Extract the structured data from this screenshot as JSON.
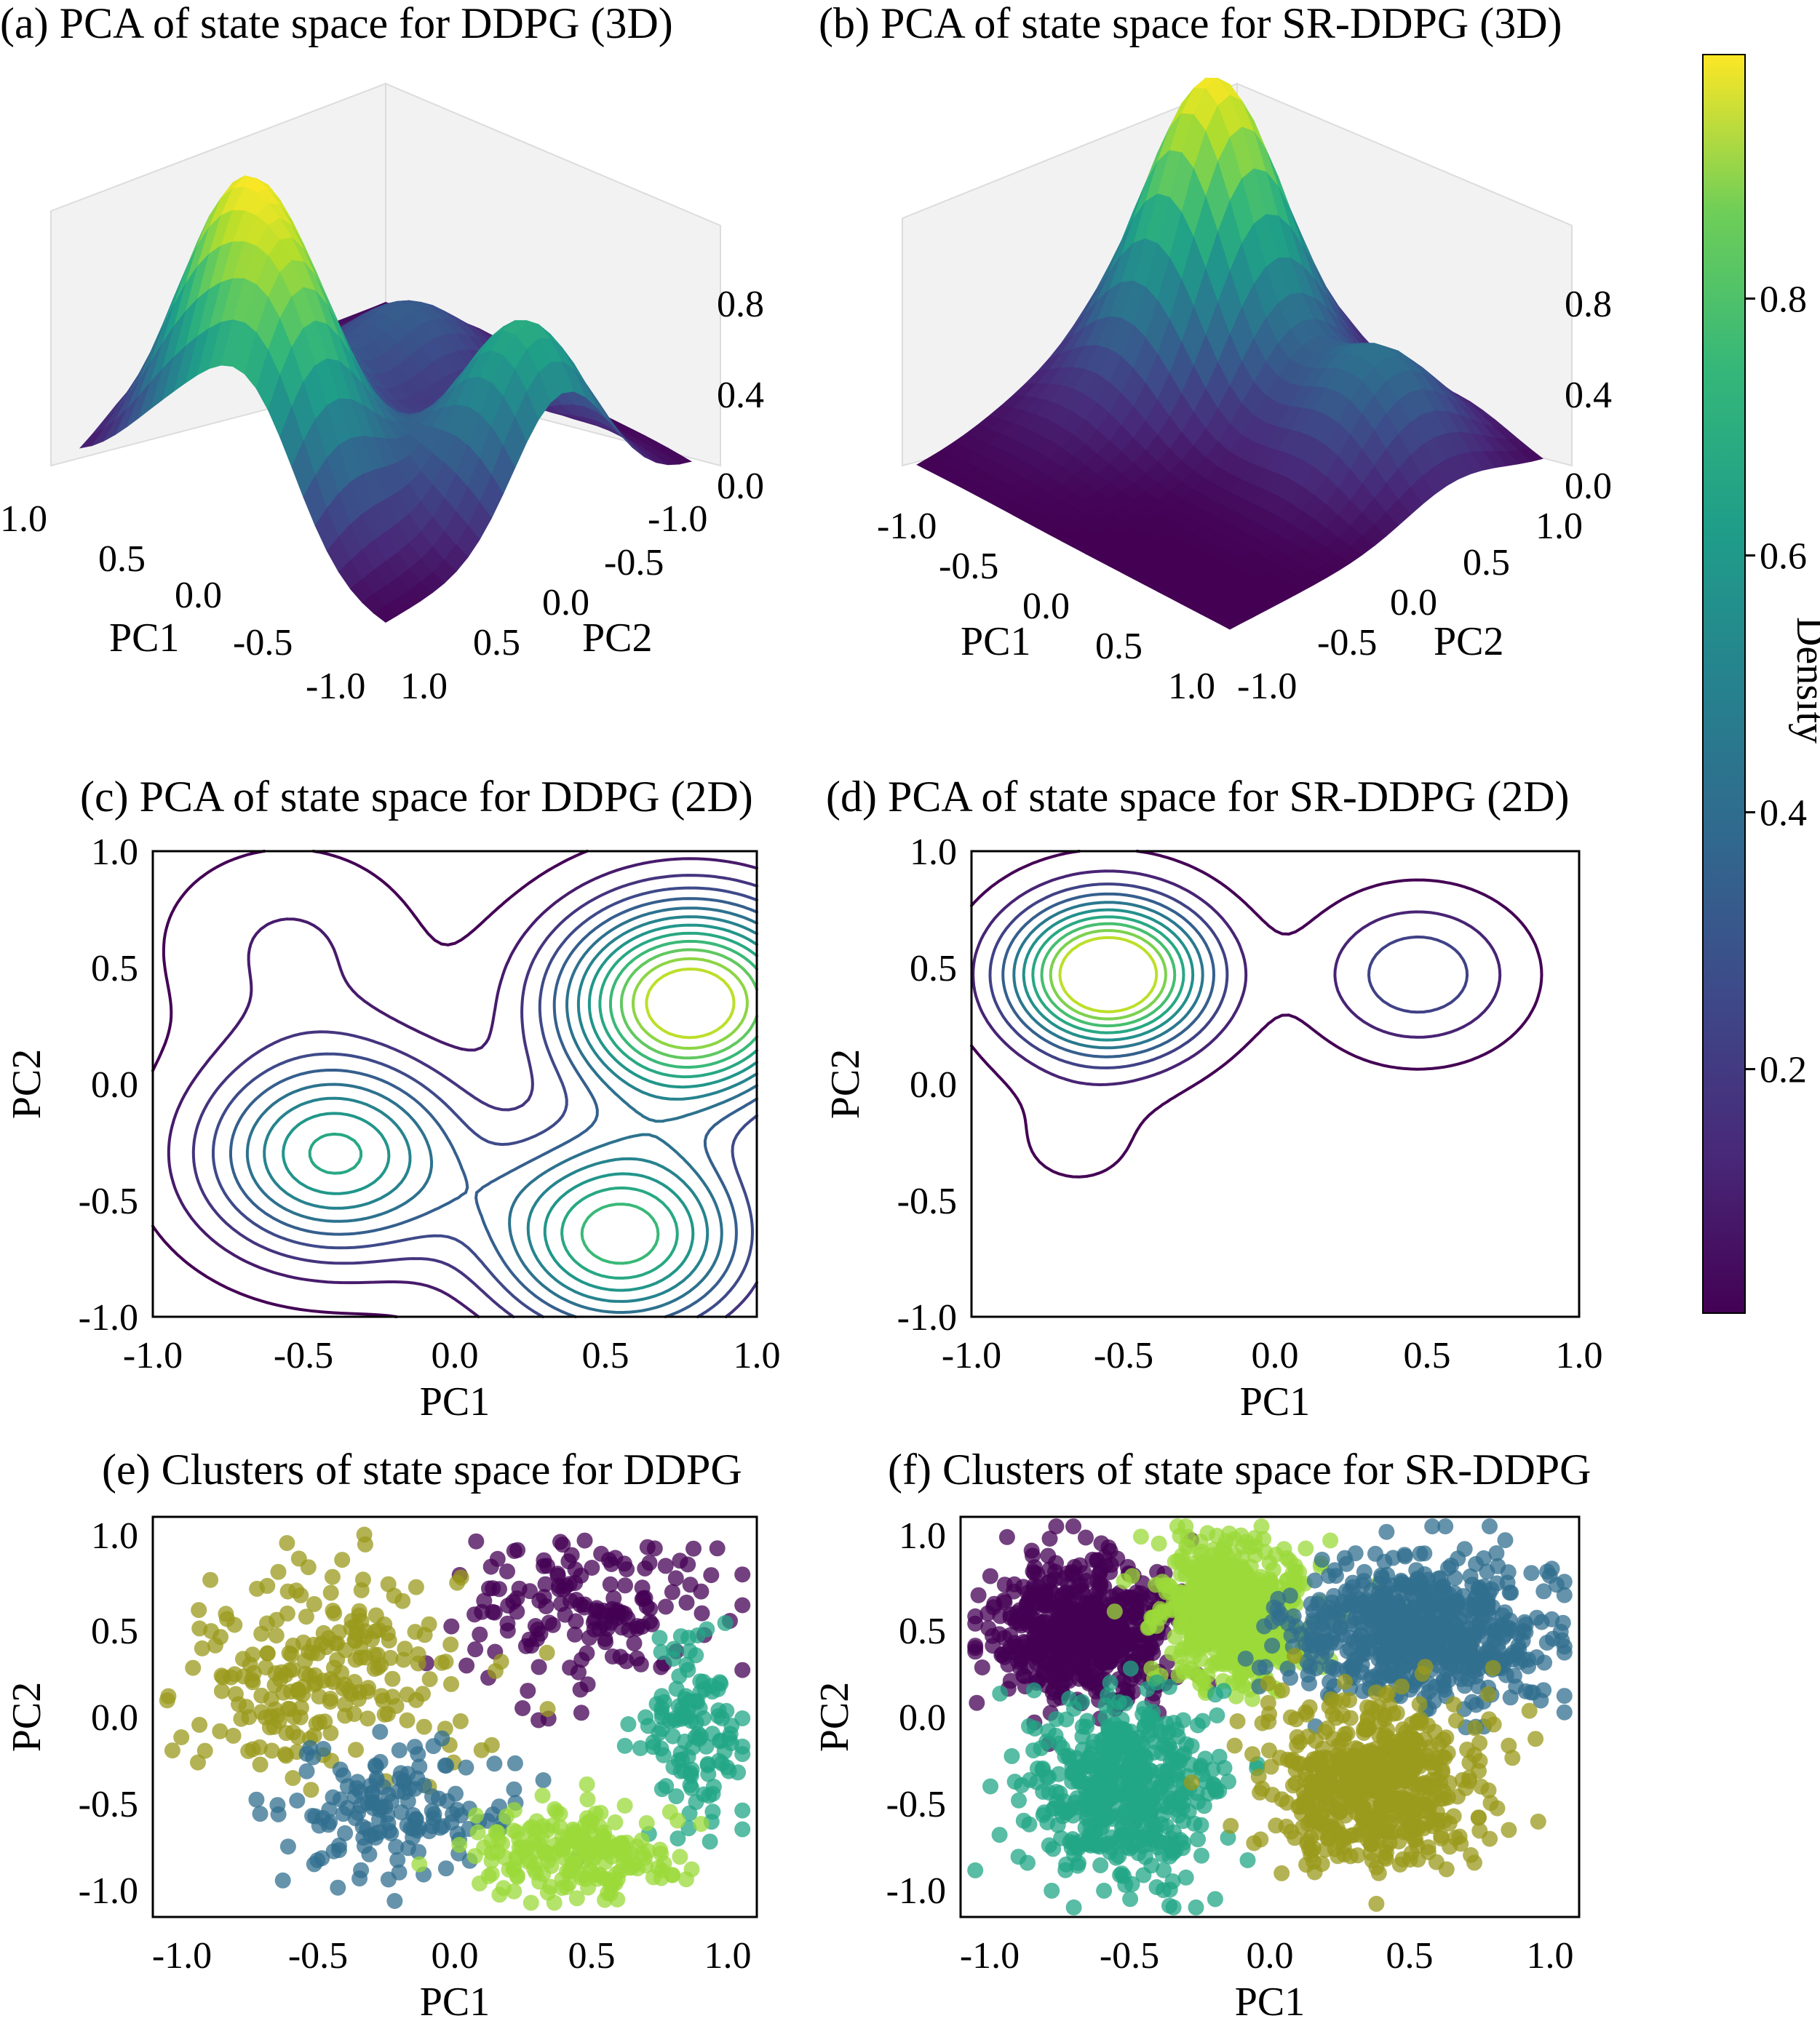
{
  "colorbar": {
    "label": "Density",
    "ticks": [
      "0.2",
      "0.4",
      "0.6",
      "0.8"
    ],
    "tick_values": [
      0.2,
      0.4,
      0.6,
      0.8
    ],
    "range": [
      0.01,
      0.99
    ]
  },
  "chart_data": [
    {
      "id": "a",
      "type": "surface",
      "title": "(a) PCA of state space for DDPG (3D)",
      "xlabel": "PC1",
      "ylabel": "PC2",
      "xticks": [
        "1.0",
        "0.5",
        "0.0",
        "-0.5",
        "-1.0"
      ],
      "yticks": [
        "-1.0",
        "-0.5",
        "0.0",
        "0.5",
        "1.0"
      ],
      "zticks": [
        "0.0",
        "0.4",
        "0.8"
      ],
      "xlim": [
        -1,
        1
      ],
      "ylim": [
        -1,
        1
      ],
      "zlim": [
        0,
        1
      ],
      "peaks": [
        {
          "x": -0.45,
          "y": -0.5,
          "height": 1.0
        },
        {
          "x": 0.1,
          "y": -0.75,
          "height": 0.85
        },
        {
          "x": 0.75,
          "y": 0.15,
          "height": 0.75
        },
        {
          "x": -0.35,
          "y": 0.5,
          "height": 0.35
        }
      ]
    },
    {
      "id": "b",
      "type": "surface",
      "title": "(b) PCA of state space for SR-DDPG (3D)",
      "xlabel": "PC1",
      "ylabel": "PC2",
      "xticks": [
        "-1.0",
        "-0.5",
        "0.0",
        "0.5",
        "1.0"
      ],
      "yticks": [
        "1.0",
        "0.5",
        "0.0",
        "-0.5",
        "-1.0"
      ],
      "zticks": [
        "0.0",
        "0.4",
        "0.8"
      ],
      "xlim": [
        -1,
        1
      ],
      "ylim": [
        -1,
        1
      ],
      "zlim": [
        0,
        1
      ],
      "peaks": [
        {
          "x": -0.55,
          "y": 0.45,
          "height": 1.0
        },
        {
          "x": 0.48,
          "y": 0.45,
          "height": 0.38
        },
        {
          "x": -0.7,
          "y": -0.2,
          "height": 0.1
        }
      ]
    },
    {
      "id": "c",
      "type": "contour",
      "title": "(c) PCA of state space for DDPG (2D)",
      "xlabel": "PC1",
      "ylabel": "PC2",
      "xticks": [
        "-1.0",
        "-0.5",
        "0.0",
        "0.5",
        "1.0"
      ],
      "yticks": [
        "1.0",
        "0.5",
        "0.0",
        "-0.5",
        "-1.0"
      ],
      "xlim": [
        -1,
        1
      ],
      "ylim": [
        -1,
        1
      ],
      "levels": [
        0.05,
        0.12,
        0.19,
        0.26,
        0.33,
        0.4,
        0.47,
        0.54,
        0.61,
        0.68,
        0.75,
        0.82,
        0.89
      ],
      "peaks": [
        {
          "x": 0.78,
          "y": 0.35,
          "height": 0.95
        },
        {
          "x": 0.55,
          "y": -0.65,
          "height": 0.7
        },
        {
          "x": -0.4,
          "y": -0.3,
          "height": 0.6
        },
        {
          "x": -0.55,
          "y": 0.6,
          "height": 0.12
        }
      ]
    },
    {
      "id": "d",
      "type": "contour",
      "title": "(d) PCA of state space for SR-DDPG (2D)",
      "xlabel": "PC1",
      "ylabel": "PC2",
      "xticks": [
        "-1.0",
        "-0.5",
        "0.0",
        "0.5",
        "1.0"
      ],
      "yticks": [
        "1.0",
        "0.5",
        "0.0",
        "-0.5",
        "-1.0"
      ],
      "xlim": [
        -1,
        1
      ],
      "ylim": [
        -1,
        1
      ],
      "levels": [
        0.05,
        0.13,
        0.21,
        0.29,
        0.37,
        0.45,
        0.53,
        0.61,
        0.69,
        0.77
      ],
      "peaks": [
        {
          "x": -0.55,
          "y": 0.47,
          "height": 0.8
        },
        {
          "x": 0.47,
          "y": 0.47,
          "height": 0.22
        },
        {
          "x": -0.65,
          "y": -0.25,
          "height": 0.05
        }
      ]
    },
    {
      "id": "e",
      "type": "scatter",
      "title": "(e) Clusters of state space for DDPG",
      "xlabel": "PC1",
      "ylabel": "PC2",
      "xticks": [
        "-1.0",
        "-0.5",
        "0.0",
        "0.5",
        "1.0"
      ],
      "yticks": [
        "1.0",
        "0.5",
        "0.0",
        "-0.5",
        "-1.0"
      ],
      "xlim": [
        -1.05,
        1.05
      ],
      "ylim": [
        -1.05,
        1.05
      ],
      "clusters": [
        {
          "color": "#440154",
          "x": 0.45,
          "y": 0.55,
          "sx": 0.22,
          "sy": 0.2,
          "count": 160
        },
        {
          "color": "#9a9a1c",
          "x": -0.45,
          "y": 0.25,
          "sx": 0.25,
          "sy": 0.28,
          "count": 230
        },
        {
          "color": "#316f8f",
          "x": -0.2,
          "y": -0.5,
          "sx": 0.2,
          "sy": 0.18,
          "count": 150
        },
        {
          "color": "#21a686",
          "x": 0.82,
          "y": -0.1,
          "sx": 0.1,
          "sy": 0.25,
          "count": 120
        },
        {
          "color": "#9bd93a",
          "x": 0.45,
          "y": -0.72,
          "sx": 0.2,
          "sy": 0.12,
          "count": 200
        }
      ]
    },
    {
      "id": "f",
      "type": "scatter",
      "title": "(f) Clusters of state space for SR-DDPG",
      "xlabel": "PC1",
      "ylabel": "PC2",
      "xticks": [
        "-1.0",
        "-0.5",
        "0.0",
        "0.5",
        "1.0"
      ],
      "yticks": [
        "1.0",
        "0.5",
        "0.0",
        "-0.5",
        "-1.0"
      ],
      "xlim": [
        -1.05,
        1.05
      ],
      "ylim": [
        -1.05,
        1.05
      ],
      "clusters": [
        {
          "color": "#440154",
          "x": -0.62,
          "y": 0.45,
          "sx": 0.16,
          "sy": 0.18,
          "count": 600
        },
        {
          "color": "#9bd93a",
          "x": -0.12,
          "y": 0.55,
          "sx": 0.13,
          "sy": 0.18,
          "count": 600
        },
        {
          "color": "#316f8f",
          "x": 0.5,
          "y": 0.45,
          "sx": 0.22,
          "sy": 0.18,
          "count": 650
        },
        {
          "color": "#21a686",
          "x": -0.5,
          "y": -0.4,
          "sx": 0.16,
          "sy": 0.22,
          "count": 500
        },
        {
          "color": "#9a9a1c",
          "x": 0.35,
          "y": -0.35,
          "sx": 0.18,
          "sy": 0.22,
          "count": 550
        }
      ]
    }
  ]
}
